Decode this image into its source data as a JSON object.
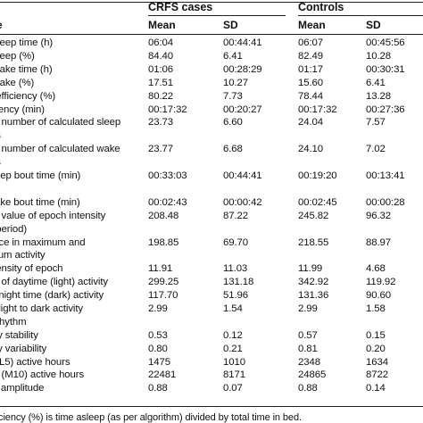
{
  "table": {
    "groups": {
      "cases": "CRFS cases",
      "controls": "Controls"
    },
    "columns": {
      "label": "e",
      "mean_cases": "Mean",
      "sd_cases": "SD",
      "mean_controls": "Mean",
      "sd_controls": "SD"
    },
    "rows": [
      {
        "label": "l sleep time (h)",
        "mean_cases": "06:04",
        "sd_cases": "00:44:41",
        "mean_controls": "06:07",
        "sd_controls": "00:45:56"
      },
      {
        "label": "l sleep (%)",
        "mean_cases": "84.40",
        "sd_cases": "6.41",
        "mean_controls": "82.49",
        "sd_controls": "10.28"
      },
      {
        "label": "l wake time (h)",
        "mean_cases": "01:06",
        "sd_cases": "00:28:29",
        "mean_controls": "01:17",
        "sd_controls": "00:30:31"
      },
      {
        "label": "l wake (%)",
        "mean_cases": "17.51",
        "sd_cases": "10.27",
        "mean_controls": "15.60",
        "sd_controls": "6.41"
      },
      {
        "label": "o efficiency (%)",
        "mean_cases": "80.22",
        "sd_cases": "7.73",
        "mean_controls": "78.44",
        "sd_controls": "13.28"
      },
      {
        "label": "latency (min)",
        "mean_cases": "00:17:32",
        "sd_cases": "00:20:27",
        "mean_controls": "00:17:32",
        "sd_controls": "00:27:36"
      },
      {
        "label": "ge number of calculated sleep",
        "mean_cases": "23.73",
        "sd_cases": "6.60",
        "mean_controls": "24.04",
        "sd_controls": "7.57"
      },
      {
        "label": "uts",
        "mean_cases": "",
        "sd_cases": "",
        "mean_controls": "",
        "sd_controls": ""
      },
      {
        "label": "ge number of calculated wake",
        "mean_cases": "23.77",
        "sd_cases": "6.68",
        "mean_controls": "24.10",
        "sd_controls": "7.02"
      },
      {
        "label": "uts",
        "mean_cases": "",
        "sd_cases": "",
        "mean_controls": "",
        "sd_controls": ""
      },
      {
        "label": " sleep bout time (min)",
        "mean_cases": "00:33:03",
        "sd_cases": "00:44:41",
        "mean_controls": "00:19:20",
        "sd_controls": "00:13:41"
      },
      {
        "label": "",
        "mean_cases": "",
        "sd_cases": "",
        "mean_controls": "",
        "sd_controls": ""
      },
      {
        "label": " wake bout time (min)",
        "mean_cases": "00:02:43",
        "sd_cases": "00:00:42",
        "mean_controls": "00:02:45",
        "sd_controls": "00:00:28"
      },
      {
        "label": "ge value of epoch intensity",
        "mean_cases": "208.48",
        "sd_cases": "87.22",
        "mean_controls": "245.82",
        "sd_controls": "96.32"
      },
      {
        "label": " h period)",
        "mean_cases": "",
        "sd_cases": "",
        "mean_controls": "",
        "sd_controls": ""
      },
      {
        "label": "ence in maximum and",
        "mean_cases": "198.85",
        "sd_cases": "69.70",
        "mean_controls": "218.55",
        "sd_controls": "88.97"
      },
      {
        "label": "imum activity",
        "mean_cases": "",
        "sd_cases": "",
        "mean_controls": "",
        "sd_controls": ""
      },
      {
        "label": "ntensity of epoch",
        "mean_cases": "11.91",
        "sd_cases": "11.03",
        "mean_controls": "11.99",
        "sd_controls": "4.68"
      },
      {
        "label": "ge of daytime (light) activity",
        "mean_cases": "299.25",
        "sd_cases": "131.18",
        "mean_controls": "342.92",
        "sd_controls": "119.92"
      },
      {
        "label": "of night time (dark) activity",
        "mean_cases": "117.70",
        "sd_cases": "51.96",
        "mean_controls": "131.36",
        "sd_controls": "90.60"
      },
      {
        "label": "of light to dark activity",
        "mean_cases": "2.99",
        "sd_cases": "1.54",
        "mean_controls": "2.99",
        "sd_controls": "1.58"
      },
      {
        "label": "n rhythm",
        "mean_cases": "",
        "sd_cases": "",
        "mean_controls": "",
        "sd_controls": ""
      },
      {
        "label": "aily stability",
        "mean_cases": "0.53",
        "sd_cases": "0.12",
        "mean_controls": "0.57",
        "sd_controls": "0.15"
      },
      {
        "label": "aily variability",
        "mean_cases": "0.80",
        "sd_cases": "0.21",
        "mean_controls": "0.81",
        "sd_controls": "0.20"
      },
      {
        "label": " 5 (L5) active hours",
        "mean_cases": "1475",
        "sd_cases": "1010",
        "mean_controls": "2348",
        "sd_controls": "1634"
      },
      {
        "label": " 10 (M10) active hours",
        "mean_cases": "22481",
        "sd_cases": "8171",
        "mean_controls": "24865",
        "sd_controls": "8722"
      },
      {
        "label": "ve amplitude",
        "mean_cases": "0.88",
        "sd_cases": "0.07",
        "mean_controls": "0.88",
        "sd_controls": "0.14"
      }
    ],
    "footnote": "fficiency (%) is time asleep (as per algorithm) divided by total time in bed."
  }
}
